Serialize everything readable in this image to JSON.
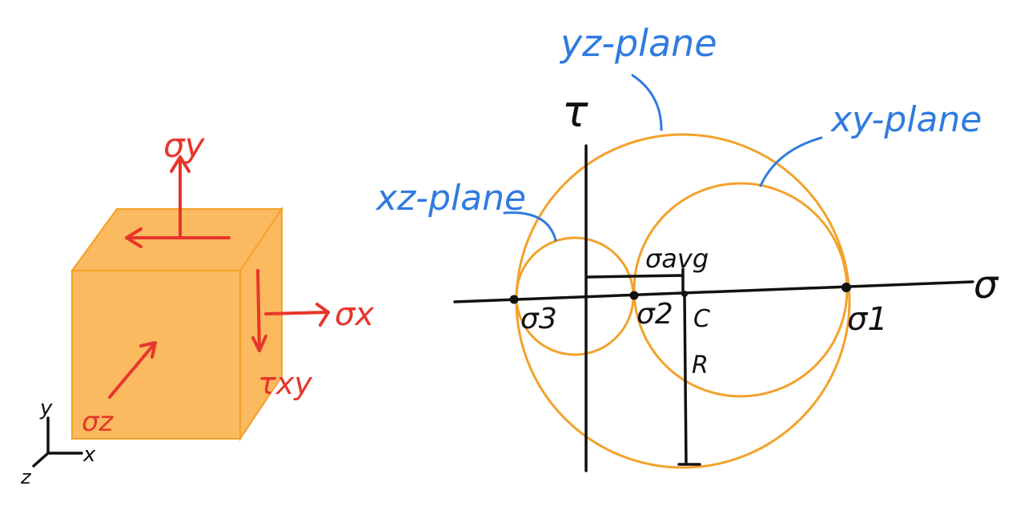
{
  "colors": {
    "cube_face": "#fbb960",
    "cube_edge": "#f3a12a",
    "circle": "#f3a12a",
    "stress_arrow": "#e8352b",
    "annotation": "#2f7be0",
    "axis": "#111111"
  },
  "element": {
    "labels": {
      "sigma_y": "σy",
      "sigma_x": "σx",
      "sigma_z": "σz",
      "tau_xy": "τxy"
    },
    "triad": {
      "x": "x",
      "y": "y",
      "z": "z"
    }
  },
  "mohr": {
    "axis_labels": {
      "tau": "τ",
      "sigma": "σ"
    },
    "points": {
      "sigma_3": "σ3",
      "sigma_2": "σ2",
      "sigma_1": "σ1",
      "center": "C"
    },
    "avg_label": "σavg",
    "radius_label": "R",
    "planes": {
      "yz": "yz-plane",
      "xy": "xy-plane",
      "xz": "xz-plane"
    }
  }
}
